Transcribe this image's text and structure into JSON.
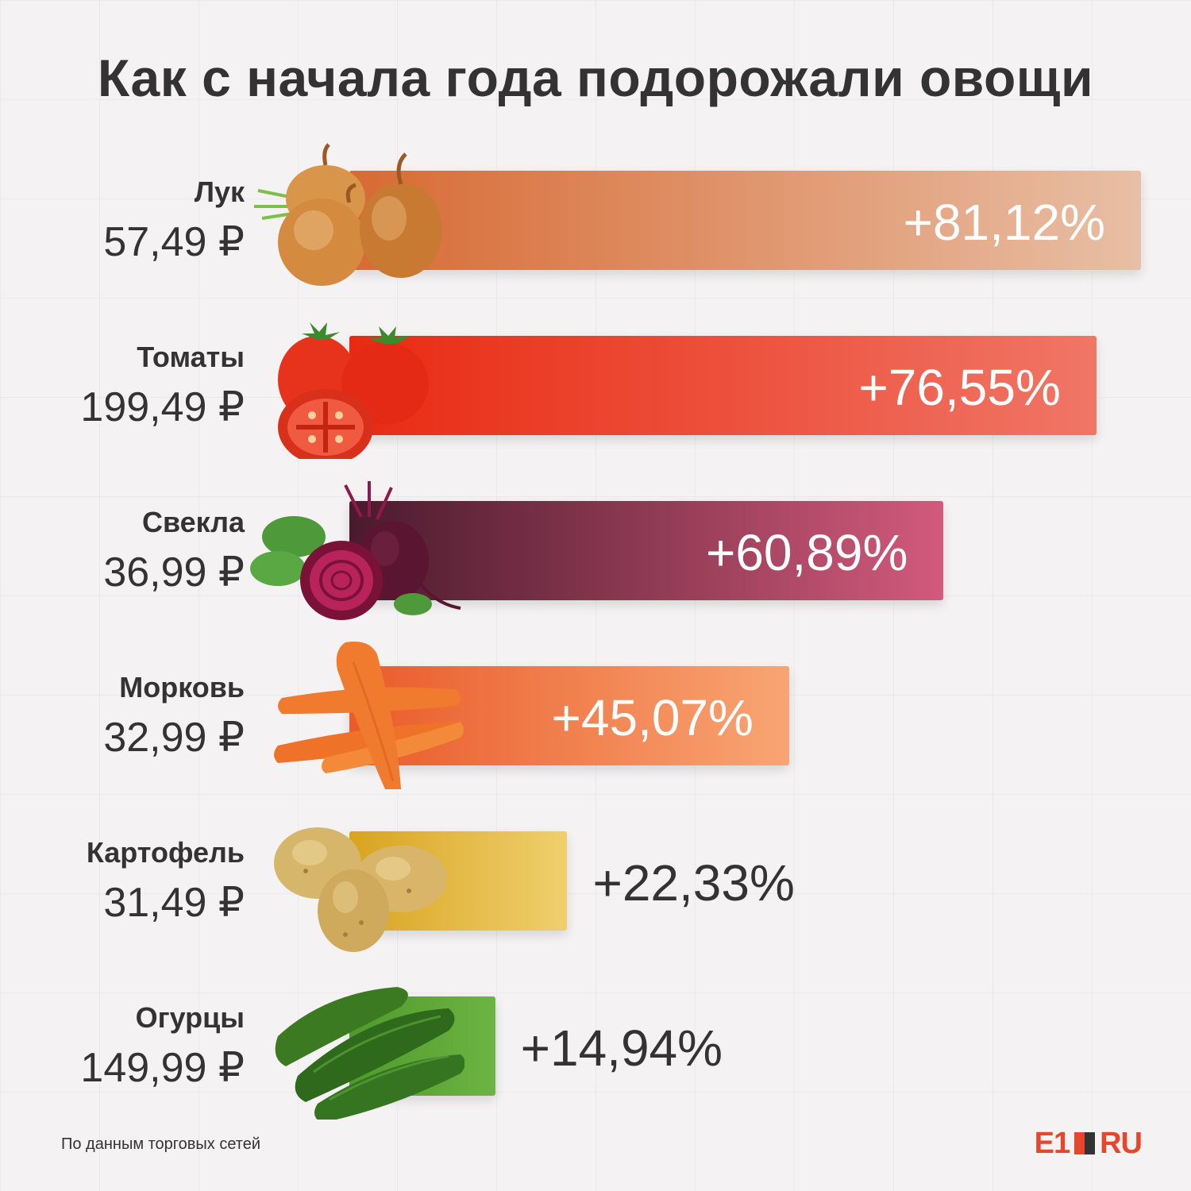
{
  "title": "Как с начала года подорожали овощи",
  "source": "По данным торговых сетей",
  "logo": {
    "e1": "E1",
    "ru": "RU"
  },
  "chart_data": {
    "type": "bar",
    "orientation": "horizontal",
    "title": "Как с начала года подорожали овощи",
    "categories": [
      "Лук",
      "Томаты",
      "Свекла",
      "Морковь",
      "Картофель",
      "Огурцы"
    ],
    "values": [
      81.12,
      76.55,
      60.89,
      45.07,
      22.33,
      14.94
    ],
    "value_labels": [
      "+81,12%",
      "+76,55%",
      "+60,89%",
      "+45,07%",
      "+22,33%",
      "+14,94%"
    ],
    "prices": [
      "57,49 ₽",
      "199,49 ₽",
      "36,99 ₽",
      "32,99 ₽",
      "31,49 ₽",
      "149,99 ₽"
    ],
    "bar_colors": [
      [
        "#d86a34",
        "#e8bfa5"
      ],
      [
        "#e92a12",
        "#f07666"
      ],
      [
        "#4a1a2c",
        "#d25a7c"
      ],
      [
        "#ea5b2a",
        "#f8a573"
      ],
      [
        "#d8a420",
        "#f0cf6e"
      ],
      [
        "#4f9a2c",
        "#6cb443"
      ]
    ],
    "icons": [
      "onion-icon",
      "tomato-icon",
      "beet-icon",
      "carrot-icon",
      "potato-icon",
      "cucumber-icon"
    ],
    "grid": false,
    "legend": "none"
  }
}
